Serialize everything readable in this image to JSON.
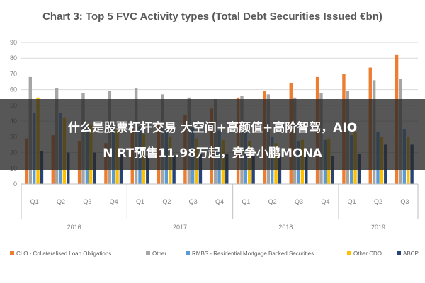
{
  "chart_data": {
    "type": "bar",
    "title": "Chart 3: Top 5 FVC Activity types (Total Debt Securities Issued €bn)",
    "ylim": [
      0,
      90
    ],
    "yticks": [
      0,
      10,
      20,
      30,
      40,
      50,
      60,
      70,
      80,
      90
    ],
    "grid": true,
    "legend_position": "bottom",
    "categories": [
      "Q1",
      "Q2",
      "Q3",
      "Q4",
      "Q1",
      "Q2",
      "Q3",
      "Q4",
      "Q1",
      "Q2",
      "Q3",
      "Q4",
      "Q1",
      "Q2",
      "Q3"
    ],
    "groups": [
      {
        "label": "2016",
        "count": 4
      },
      {
        "label": "2017",
        "count": 4
      },
      {
        "label": "2018",
        "count": 4
      },
      {
        "label": "2019",
        "count": 3
      }
    ],
    "series": [
      {
        "name": "CLO - Collateralised Loan Obligations",
        "color": "#ed7d31",
        "values": [
          29,
          31,
          27,
          26,
          35,
          38,
          44,
          48,
          55,
          59,
          64,
          68,
          70,
          74,
          82
        ]
      },
      {
        "name": "Other",
        "color": "#a5a5a5",
        "values": [
          68,
          61,
          58,
          59,
          61,
          57,
          55,
          54,
          56,
          57,
          55,
          58,
          59,
          66,
          67
        ]
      },
      {
        "name": "RMBS - Residential Mortgage Backed Securities",
        "color": "#5b9bd5",
        "values": [
          45,
          45,
          38,
          37,
          36,
          35,
          36,
          34,
          33,
          30,
          27,
          28,
          31,
          33,
          35
        ]
      },
      {
        "name": "Other CDO",
        "color": "#ffc000",
        "values": [
          55,
          42,
          38,
          35,
          32,
          30,
          29,
          28,
          27,
          26,
          28,
          29,
          33,
          30,
          30
        ]
      },
      {
        "name": "ABCP",
        "color": "#264478",
        "values": [
          21,
          20,
          20,
          19,
          18,
          18,
          19,
          19,
          18,
          18,
          19,
          18,
          19,
          25,
          25
        ]
      }
    ]
  },
  "overlay": {
    "line1": "什么是股票杠杆交易 大空间+高颜值+高阶智驾，AIO",
    "line2": "N RT预售11.98万起，竞争小鹏MONA"
  }
}
